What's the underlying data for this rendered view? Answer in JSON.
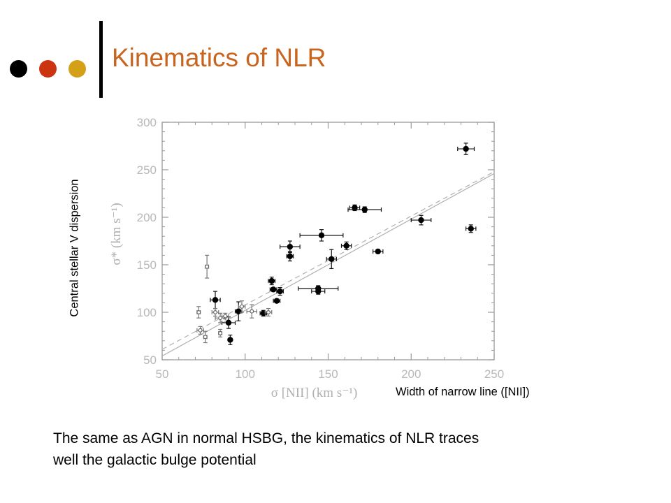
{
  "slide": {
    "title": "Kinematics of NLR",
    "dot_colors": [
      "#000000",
      "#cc3311",
      "#d4a017"
    ],
    "accent_color": "#c8641e",
    "y_description": "Central stellar V dispersion",
    "x_description": "Width of narrow line ([NII])",
    "caption_lines": [
      "The same as AGN in normal HSBG,  the kinematics of NLR traces",
      "well the galactic bulge potential"
    ]
  },
  "chart_data": {
    "type": "scatter",
    "xlabel": "σ [NII] (km s⁻¹)",
    "ylabel": "σ* (km s⁻¹)",
    "xlim": [
      50,
      250
    ],
    "ylim": [
      50,
      300
    ],
    "x_ticks": [
      50,
      100,
      150,
      200,
      250
    ],
    "y_ticks": [
      50,
      100,
      150,
      200,
      250,
      300
    ],
    "grid": false,
    "lines": [
      {
        "style": "solid",
        "x": [
          50,
          250
        ],
        "y": [
          54,
          246
        ]
      },
      {
        "style": "dashed",
        "x": [
          50,
          250
        ],
        "y": [
          61,
          248
        ]
      }
    ],
    "series": [
      {
        "marker": "filled-circle",
        "points": [
          {
            "x": 233,
            "y": 272,
            "xerr": 5,
            "yerr": 6
          },
          {
            "x": 166,
            "y": 210,
            "xerr": 3,
            "yerr": 3
          },
          {
            "x": 172,
            "y": 208,
            "xerr": 10,
            "yerr": 3
          },
          {
            "x": 206,
            "y": 197,
            "xerr": 6,
            "yerr": 5
          },
          {
            "x": 236,
            "y": 188,
            "xerr": 3,
            "yerr": 4
          },
          {
            "x": 146,
            "y": 181,
            "xerr": 13,
            "yerr": 6
          },
          {
            "x": 161,
            "y": 170,
            "xerr": 3,
            "yerr": 4
          },
          {
            "x": 180,
            "y": 164,
            "xerr": 3,
            "yerr": 2
          },
          {
            "x": 127,
            "y": 169,
            "xerr": 6,
            "yerr": 6
          },
          {
            "x": 127,
            "y": 159,
            "xerr": 2,
            "yerr": 5
          },
          {
            "x": 152,
            "y": 156,
            "xerr": 3,
            "yerr": 10
          },
          {
            "x": 116,
            "y": 133,
            "xerr": 2,
            "yerr": 4
          },
          {
            "x": 117,
            "y": 124,
            "xerr": 2,
            "yerr": 2
          },
          {
            "x": 121,
            "y": 122,
            "xerr": 2,
            "yerr": 4
          },
          {
            "x": 144,
            "y": 125,
            "xerr": 12,
            "yerr": 3
          },
          {
            "x": 144,
            "y": 122,
            "xerr": 4,
            "yerr": 3
          },
          {
            "x": 119,
            "y": 112,
            "xerr": 2,
            "yerr": 2
          },
          {
            "x": 82,
            "y": 113,
            "xerr": 3,
            "yerr": 9
          },
          {
            "x": 90,
            "y": 89,
            "xerr": 4,
            "yerr": 6
          },
          {
            "x": 96,
            "y": 101,
            "xerr": 2,
            "yerr": 10
          },
          {
            "x": 111,
            "y": 99,
            "xerr": 2,
            "yerr": 3
          },
          {
            "x": 91,
            "y": 71,
            "xerr": 1,
            "yerr": 5
          }
        ]
      },
      {
        "marker": "open-circle",
        "points": [
          {
            "x": 77,
            "y": 148,
            "xerr": 1,
            "yerr": 12
          },
          {
            "x": 72,
            "y": 100,
            "xerr": 1,
            "yerr": 6
          },
          {
            "x": 73,
            "y": 81,
            "xerr": 2,
            "yerr": 4
          },
          {
            "x": 76,
            "y": 74,
            "xerr": 1,
            "yerr": 6
          },
          {
            "x": 82,
            "y": 100,
            "xerr": 2,
            "yerr": 4
          },
          {
            "x": 85,
            "y": 94,
            "xerr": 3,
            "yerr": 5
          },
          {
            "x": 88,
            "y": 96,
            "xerr": 2,
            "yerr": 3
          },
          {
            "x": 85,
            "y": 78,
            "xerr": 1,
            "yerr": 4
          },
          {
            "x": 98,
            "y": 106,
            "xerr": 2,
            "yerr": 6
          },
          {
            "x": 104,
            "y": 101,
            "xerr": 3,
            "yerr": 7
          },
          {
            "x": 114,
            "y": 100,
            "xerr": 2,
            "yerr": 4
          }
        ]
      }
    ]
  }
}
